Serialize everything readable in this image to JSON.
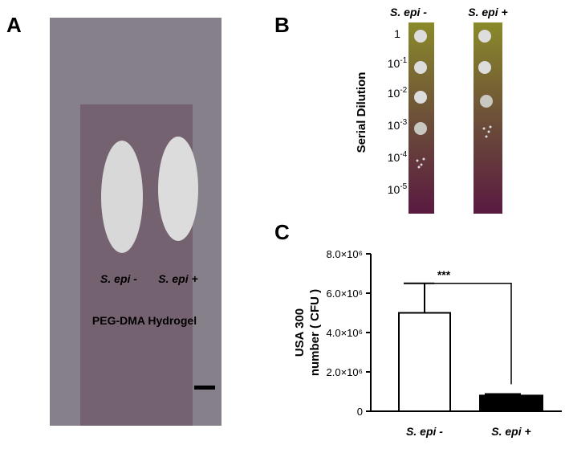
{
  "panel_a": {
    "label": "A",
    "left_site": "S. epi -",
    "right_site": "S. epi +",
    "material": "PEG-DMA Hydrogel"
  },
  "panel_b": {
    "label": "B",
    "columns": [
      "S. epi -",
      "S. epi +"
    ],
    "axis_label": "Serial Dilution",
    "dilutions": [
      {
        "base": "1"
      },
      {
        "base": "10",
        "exponent": "-1"
      },
      {
        "base": "10",
        "exponent": "-2"
      },
      {
        "base": "10",
        "exponent": "-3"
      },
      {
        "base": "10",
        "exponent": "-4"
      },
      {
        "base": "10",
        "exponent": "-5"
      }
    ]
  },
  "chart_data": {
    "type": "bar",
    "label": "C",
    "ylabel": [
      "USA 300",
      "number ( CFU )"
    ],
    "categories": [
      "S. epi -",
      "S. epi +"
    ],
    "values": [
      5000000,
      800000
    ],
    "errors": [
      1500000,
      80000
    ],
    "colors": [
      "#ffffff",
      "#000000"
    ],
    "significance": "***",
    "ylim": [
      0,
      8000000
    ],
    "yticks": [
      0,
      {
        "value": 2000000,
        "label": "2.0×10⁶"
      },
      {
        "value": 4000000,
        "label": "4.0×10⁶"
      },
      {
        "value": 6000000,
        "label": "6.0×10⁶"
      },
      {
        "value": 8000000,
        "label": "8.0×10⁶"
      }
    ]
  }
}
